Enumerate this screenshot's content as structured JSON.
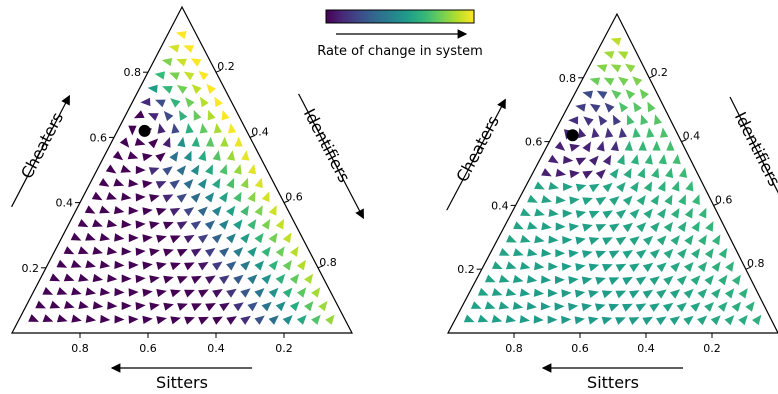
{
  "colors": {
    "colormap": [
      "#440154",
      "#482878",
      "#3e4a89",
      "#31688e",
      "#26828e",
      "#1f9e89",
      "#35b779",
      "#6ece58",
      "#b5de2b",
      "#fde725"
    ],
    "edge": "#000000",
    "equilibrium": "#000000"
  },
  "colorbar": {
    "label": "Rate of change in system"
  },
  "chart_data": [
    {
      "type": "ternary-quiver",
      "axes": {
        "left": {
          "label": "Cheaters",
          "ticks": [
            "0.2",
            "0.4",
            "0.6",
            "0.8"
          ]
        },
        "right": {
          "label": "Identifiers",
          "ticks": [
            "0.2",
            "0.4",
            "0.6",
            "0.8"
          ]
        },
        "bottom": {
          "label": "Sitters",
          "ticks": [
            "0.8",
            "0.6",
            "0.4",
            "0.2"
          ]
        }
      },
      "equilibrium": {
        "Cheaters": 0.62,
        "Identifiers": 0.08,
        "Sitters": 0.3
      },
      "grid_steps": 24,
      "speed_profile": "high-near-right-edge",
      "rotation": "counterclockwise-around-equilibrium"
    },
    {
      "type": "ternary-quiver",
      "axes": {
        "left": {
          "label": "Cheaters",
          "ticks": [
            "0.2",
            "0.4",
            "0.6",
            "0.8"
          ]
        },
        "right": {
          "label": "Identifiers",
          "ticks": [
            "0.2",
            "0.4",
            "0.6",
            "0.8"
          ]
        },
        "bottom": {
          "label": "Sitters",
          "ticks": [
            "0.8",
            "0.6",
            "0.4",
            "0.2"
          ]
        }
      },
      "equilibrium": {
        "Cheaters": 0.62,
        "Identifiers": 0.06,
        "Sitters": 0.32
      },
      "grid_steps": 24,
      "speed_profile": "high-near-top-and-edges",
      "rotation": "counterclockwise-around-equilibrium"
    }
  ]
}
